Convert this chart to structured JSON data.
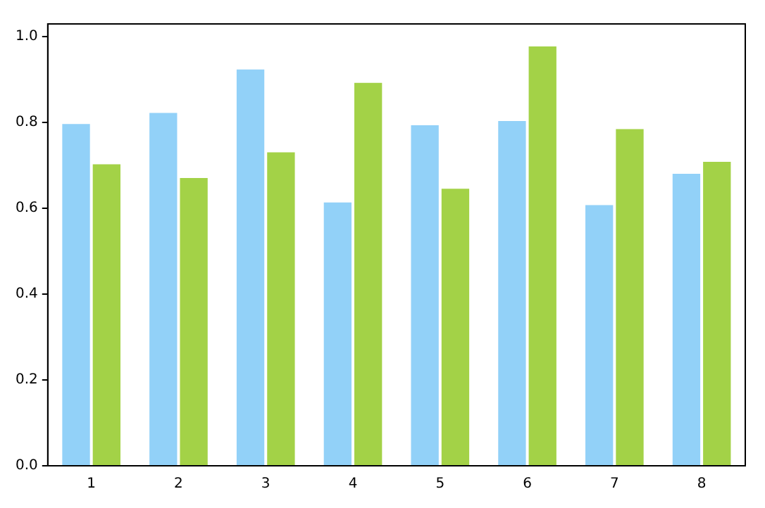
{
  "chart_data": {
    "type": "bar",
    "categories": [
      "1",
      "2",
      "3",
      "4",
      "5",
      "6",
      "7",
      "8"
    ],
    "series": [
      {
        "color": "#92d1f8",
        "values": [
          0.8,
          0.826,
          0.927,
          0.617,
          0.797,
          0.807,
          0.611,
          0.684
        ]
      },
      {
        "color": "#a3d247",
        "values": [
          0.706,
          0.674,
          0.734,
          0.896,
          0.649,
          0.981,
          0.788,
          0.712
        ]
      }
    ],
    "ylim": [
      0,
      1.03
    ],
    "yticks": [
      {
        "value": 0,
        "label": "0.0"
      },
      {
        "value": 0.2,
        "label": "0.2"
      },
      {
        "value": 0.4,
        "label": "0.4"
      },
      {
        "value": 0.6,
        "label": "0.6"
      },
      {
        "value": 0.8,
        "label": "0.8"
      },
      {
        "value": 1,
        "label": "1.0"
      }
    ],
    "grid": false,
    "legend": false
  }
}
